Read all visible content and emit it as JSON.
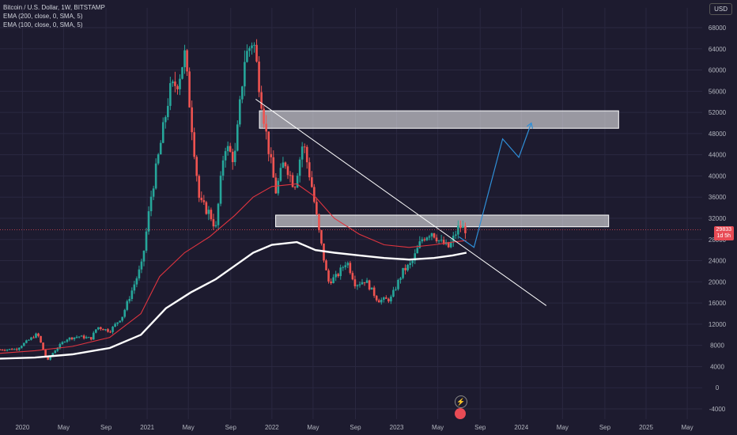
{
  "legend": {
    "title": "Bitcoin / U.S. Dollar, 1W, BITSTAMP",
    "ema200": "EMA (200, close, 0, SMA, 5)",
    "ema100": "EMA (100, close, 0, SMA, 5)"
  },
  "currency": "USD",
  "price_tag": {
    "price": "29833",
    "countdown": "1d 5h"
  },
  "icons": {
    "flash": "lightning-icon",
    "event": "earnings-event-icon"
  },
  "colors": {
    "background": "#1d1b2f",
    "up": "#26a69a",
    "down": "#ef5350",
    "ema100": "#ffffff",
    "ema200": "#e0343f",
    "projection": "#2f8fd8",
    "trendline": "#ffffff",
    "zone": "#ffffff"
  },
  "chart_data": {
    "type": "candlestick",
    "symbol": "BTCUSD",
    "interval": "1W",
    "ylim": [
      -4000,
      70000
    ],
    "y_ticks": [
      68000,
      64000,
      60000,
      56000,
      52000,
      48000,
      44000,
      40000,
      36000,
      32000,
      28000,
      24000,
      20000,
      16000,
      12000,
      8000,
      4000,
      0,
      -4000
    ],
    "x_ticks": [
      {
        "label": "2020",
        "t": 2020.0
      },
      {
        "label": "May",
        "t": 2020.33
      },
      {
        "label": "Sep",
        "t": 2020.67
      },
      {
        "label": "2021",
        "t": 2021.0
      },
      {
        "label": "May",
        "t": 2021.33
      },
      {
        "label": "Sep",
        "t": 2021.67
      },
      {
        "label": "2022",
        "t": 2022.0
      },
      {
        "label": "May",
        "t": 2022.33
      },
      {
        "label": "Sep",
        "t": 2022.67
      },
      {
        "label": "2023",
        "t": 2023.0
      },
      {
        "label": "May",
        "t": 2023.33
      },
      {
        "label": "Sep",
        "t": 2023.67
      },
      {
        "label": "2024",
        "t": 2024.0
      },
      {
        "label": "May",
        "t": 2024.33
      },
      {
        "label": "Sep",
        "t": 2024.67
      },
      {
        "label": "2025",
        "t": 2025.0
      },
      {
        "label": "May",
        "t": 2025.33
      }
    ],
    "xlim": [
      2019.82,
      2025.45
    ],
    "price_path": [
      [
        2019.82,
        7200
      ],
      [
        2019.95,
        7300
      ],
      [
        2020.05,
        9000
      ],
      [
        2020.12,
        10200
      ],
      [
        2020.2,
        5000
      ],
      [
        2020.25,
        6800
      ],
      [
        2020.35,
        9200
      ],
      [
        2020.45,
        9700
      ],
      [
        2020.55,
        9300
      ],
      [
        2020.6,
        11500
      ],
      [
        2020.7,
        10700
      ],
      [
        2020.8,
        13500
      ],
      [
        2020.88,
        18500
      ],
      [
        2020.96,
        23500
      ],
      [
        2021.03,
        36000
      ],
      [
        2021.1,
        45000
      ],
      [
        2021.18,
        56000
      ],
      [
        2021.25,
        58000
      ],
      [
        2021.3,
        63000
      ],
      [
        2021.36,
        49000
      ],
      [
        2021.42,
        35000
      ],
      [
        2021.5,
        33000
      ],
      [
        2021.55,
        30000
      ],
      [
        2021.62,
        46000
      ],
      [
        2021.7,
        43000
      ],
      [
        2021.78,
        62000
      ],
      [
        2021.85,
        66000
      ],
      [
        2021.9,
        57000
      ],
      [
        2021.96,
        47000
      ],
      [
        2022.03,
        37000
      ],
      [
        2022.1,
        43000
      ],
      [
        2022.18,
        38000
      ],
      [
        2022.25,
        46500
      ],
      [
        2022.32,
        38000
      ],
      [
        2022.38,
        29000
      ],
      [
        2022.45,
        20000
      ],
      [
        2022.52,
        21000
      ],
      [
        2022.6,
        24000
      ],
      [
        2022.67,
        19500
      ],
      [
        2022.75,
        20300
      ],
      [
        2022.85,
        16500
      ],
      [
        2022.95,
        16700
      ],
      [
        2023.05,
        22000
      ],
      [
        2023.12,
        23500
      ],
      [
        2023.2,
        28000
      ],
      [
        2023.28,
        29500
      ],
      [
        2023.35,
        27500
      ],
      [
        2023.42,
        26500
      ],
      [
        2023.5,
        30500
      ],
      [
        2023.56,
        29800
      ]
    ],
    "series": [
      {
        "name": "EMA (100, close, 0, SMA, 5)",
        "color": "#ffffff",
        "points": [
          [
            2019.82,
            5500
          ],
          [
            2020.1,
            5700
          ],
          [
            2020.4,
            6300
          ],
          [
            2020.7,
            7500
          ],
          [
            2020.95,
            10000
          ],
          [
            2021.15,
            15000
          ],
          [
            2021.35,
            18000
          ],
          [
            2021.55,
            20500
          ],
          [
            2021.7,
            23000
          ],
          [
            2021.85,
            25500
          ],
          [
            2022.0,
            27000
          ],
          [
            2022.2,
            27500
          ],
          [
            2022.35,
            26000
          ],
          [
            2022.5,
            25500
          ],
          [
            2022.7,
            25000
          ],
          [
            2022.9,
            24500
          ],
          [
            2023.1,
            24200
          ],
          [
            2023.3,
            24500
          ],
          [
            2023.45,
            25000
          ],
          [
            2023.56,
            25500
          ]
        ]
      },
      {
        "name": "EMA (200, close, 0, SMA, 5)",
        "color": "#e0343f",
        "points": [
          [
            2019.82,
            6500
          ],
          [
            2020.1,
            7000
          ],
          [
            2020.4,
            7800
          ],
          [
            2020.7,
            9500
          ],
          [
            2020.95,
            14000
          ],
          [
            2021.1,
            21000
          ],
          [
            2021.3,
            25500
          ],
          [
            2021.5,
            28500
          ],
          [
            2021.7,
            32500
          ],
          [
            2021.85,
            36000
          ],
          [
            2022.0,
            38000
          ],
          [
            2022.2,
            38500
          ],
          [
            2022.35,
            36000
          ],
          [
            2022.5,
            32000
          ],
          [
            2022.7,
            29000
          ],
          [
            2022.9,
            27000
          ],
          [
            2023.1,
            26500
          ],
          [
            2023.3,
            27000
          ],
          [
            2023.45,
            27500
          ],
          [
            2023.56,
            27800
          ]
        ]
      }
    ],
    "zones": [
      {
        "t0": 2021.9,
        "t1": 2024.78,
        "y0": 49000,
        "y1": 52300
      },
      {
        "t0": 2022.03,
        "t1": 2024.7,
        "y0": 30400,
        "y1": 32600
      }
    ],
    "trendline": [
      [
        2021.87,
        54500
      ],
      [
        2024.2,
        15500
      ]
    ],
    "projection": [
      [
        2023.5,
        28500
      ],
      [
        2023.62,
        26500
      ],
      [
        2023.85,
        47000
      ],
      [
        2023.98,
        43500
      ],
      [
        2024.08,
        50000
      ]
    ],
    "last_price": 29833
  }
}
